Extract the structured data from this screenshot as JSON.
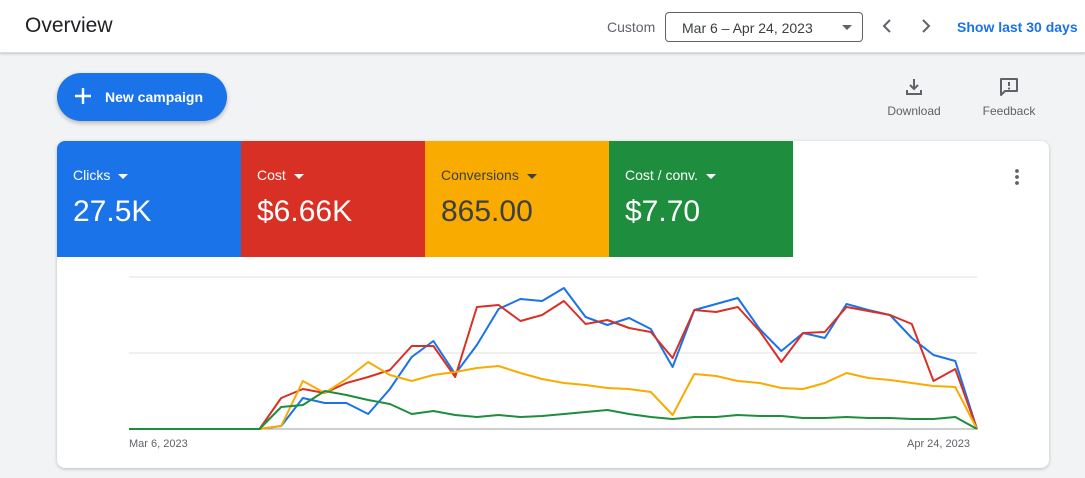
{
  "header": {
    "title": "Overview",
    "custom_label": "Custom",
    "date_range": "Mar 6 – Apr 24, 2023",
    "show_last": "Show last 30 days"
  },
  "toolbar": {
    "new_campaign": "New campaign",
    "download": "Download",
    "feedback": "Feedback"
  },
  "metrics": [
    {
      "label": "Clicks",
      "value": "27.5K",
      "color": "#1a73e8"
    },
    {
      "label": "Cost",
      "value": "$6.66K",
      "color": "#d93025"
    },
    {
      "label": "Conversions",
      "value": "865.00",
      "color": "#f9ab00"
    },
    {
      "label": "Cost / conv.",
      "value": "$7.70",
      "color": "#1e8e3e"
    }
  ],
  "chart_data": {
    "type": "line",
    "x_start": "Mar 6, 2023",
    "x_end": "Apr 24, 2023",
    "grid": true,
    "series": [
      {
        "name": "Clicks",
        "color": "#1a73e8",
        "values": [
          0,
          0,
          0,
          0,
          0,
          0,
          0,
          3,
          31,
          26,
          26,
          15,
          40,
          72,
          88,
          55,
          84,
          120,
          130,
          128,
          141,
          112,
          104,
          111,
          100,
          62,
          119,
          125,
          131,
          100,
          78,
          96,
          91,
          125,
          119,
          114,
          91,
          74,
          68,
          0
        ]
      },
      {
        "name": "Cost",
        "color": "#d93025",
        "values": [
          0,
          0,
          0,
          0,
          0,
          0,
          0,
          31,
          40,
          36,
          46,
          52,
          59,
          83,
          83,
          52,
          122,
          124,
          108,
          114,
          128,
          105,
          109,
          101,
          97,
          71,
          119,
          117,
          122,
          98,
          67,
          96,
          97,
          122,
          118,
          114,
          105,
          48,
          60,
          0
        ]
      },
      {
        "name": "Conversions",
        "color": "#f9ab00",
        "values": [
          0,
          0,
          0,
          0,
          0,
          0,
          0,
          3,
          48,
          36,
          50,
          67,
          54,
          48,
          54,
          57,
          61,
          63,
          56,
          50,
          46,
          44,
          41,
          40,
          37,
          14,
          55,
          53,
          48,
          46,
          41,
          40,
          46,
          56,
          51,
          49,
          46,
          43,
          42,
          0
        ]
      },
      {
        "name": "Cost / conv.",
        "color": "#1e8e3e",
        "values": [
          0,
          0,
          0,
          0,
          0,
          0,
          0,
          22,
          24,
          38,
          34,
          29,
          25,
          15,
          18,
          14,
          12,
          14,
          12,
          13,
          15,
          17,
          19,
          15,
          12,
          10,
          12,
          12,
          14,
          13,
          13,
          11,
          11,
          12,
          11,
          11,
          10,
          10,
          12,
          0
        ]
      }
    ]
  }
}
